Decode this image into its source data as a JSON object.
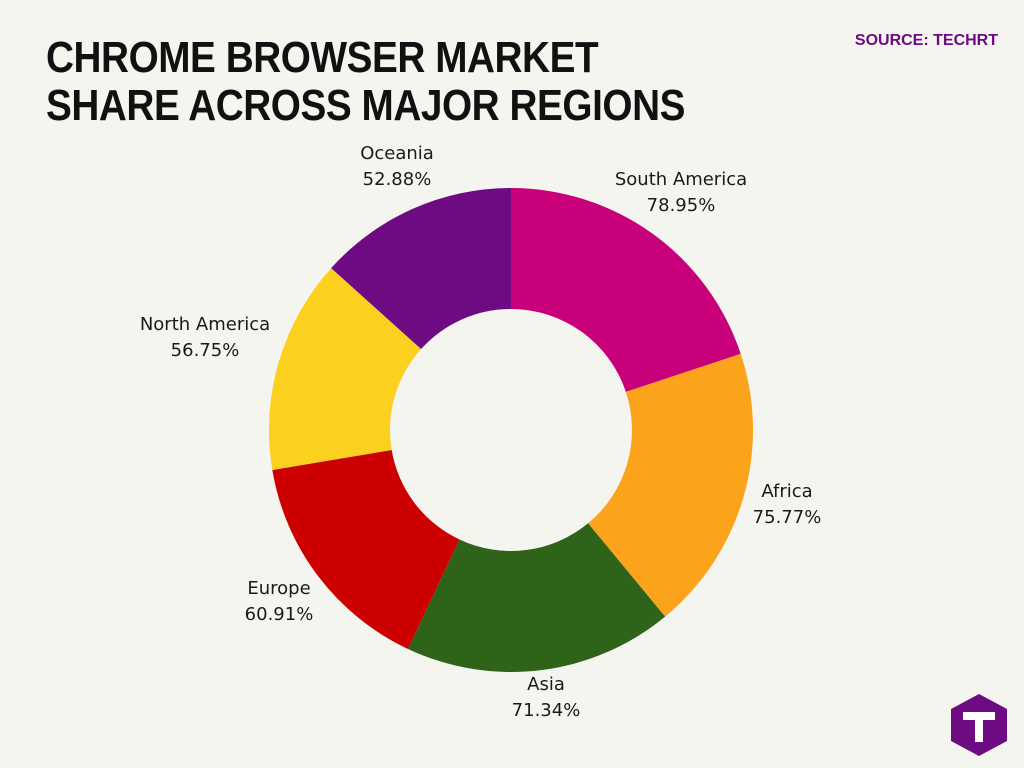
{
  "title": "CHROME BROWSER MARKET SHARE ACROSS MAJOR REGIONS",
  "source": "SOURCE: TECHRT",
  "logo": {
    "letter": "T",
    "color": "#6e0a82"
  },
  "chart_data": {
    "type": "pie",
    "donut": true,
    "title": "CHROME BROWSER MARKET SHARE ACROSS MAJOR REGIONS",
    "unit": "%",
    "slices": [
      {
        "label": "South America",
        "value": 78.95,
        "value_label": "78.95%",
        "color": "#c8007a"
      },
      {
        "label": "Africa",
        "value": 75.77,
        "value_label": "75.77%",
        "color": "#faa31b"
      },
      {
        "label": "Asia",
        "value": 71.34,
        "value_label": "71.34%",
        "color": "#2e6419"
      },
      {
        "label": "Europe",
        "value": 60.91,
        "value_label": "60.91%",
        "color": "#cc0000"
      },
      {
        "label": "North America",
        "value": 56.75,
        "value_label": "56.75%",
        "color": "#fcd01f"
      },
      {
        "label": "Oceania",
        "value": 52.88,
        "value_label": "52.88%",
        "color": "#6e0a82"
      }
    ]
  }
}
